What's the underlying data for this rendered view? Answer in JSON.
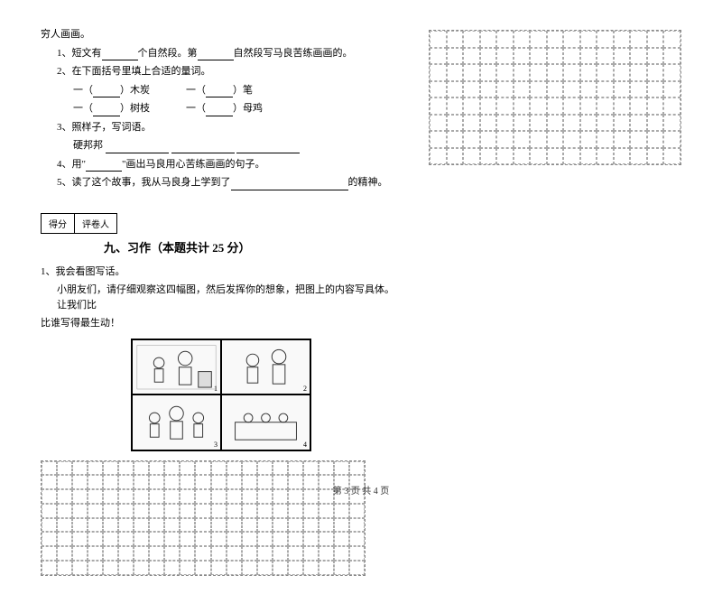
{
  "intro": "穷人画画。",
  "q1": {
    "prefix": "1、短文有",
    "mid1": "个自然段。第",
    "suffix": "自然段写马良苦练画画的。"
  },
  "q2": {
    "text": "2、在下面括号里填上合适的量词。",
    "items": [
      {
        "prefix": "一（",
        "mid": "）木炭",
        "prefix2": "一（",
        "suffix": "）笔"
      },
      {
        "prefix": "一（",
        "mid": "）树枝",
        "prefix2": "一（",
        "suffix": "）母鸡"
      }
    ]
  },
  "q3": {
    "text": "3、照样子，写词语。",
    "example": "硬邦邦"
  },
  "q4": {
    "prefix": "4、用\"",
    "suffix": "\"画出马良用心苦练画画的句子。"
  },
  "q5": {
    "prefix": "5、读了这个故事，我从马良身上学到了",
    "suffix": "的精神。"
  },
  "score": {
    "label1": "得分",
    "label2": "评卷人"
  },
  "section": {
    "title": "九、习作（本题共计 25 分）"
  },
  "essay": {
    "line1": "1、我会看图写话。",
    "line2": "小朋友们，请仔细观察这四幅图，然后发挥你的想象，把图上的内容写具体。让我们比",
    "line3": "比谁写得最生动！"
  },
  "panels": [
    "1",
    "2",
    "3",
    "4"
  ],
  "footer": "第 3 页 共 4 页",
  "grid": {
    "left_cells": 168,
    "right_cells": 120
  }
}
